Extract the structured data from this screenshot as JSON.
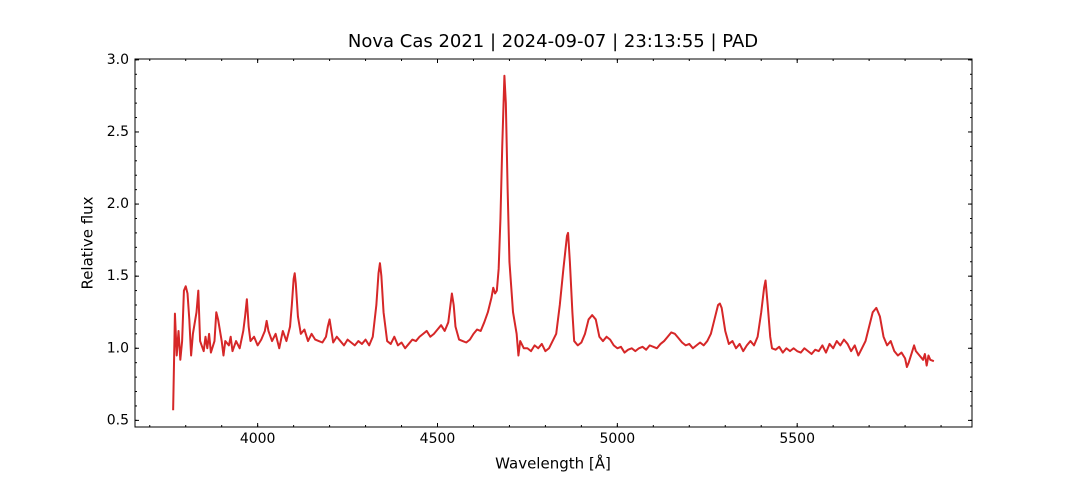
{
  "chart_data": {
    "type": "line",
    "title": "Nova Cas 2021 | 2024-09-07 | 23:13:55 | PAD",
    "xlabel": "Wavelength [Å]",
    "ylabel": "Relative flux",
    "color": "#d62728",
    "xlim": [
      3659,
      5986
    ],
    "ylim": [
      0.454,
      3.006
    ],
    "xticks": [
      4000,
      4500,
      5000,
      5500
    ],
    "yticks": [
      0.5,
      {
        "value": 1,
        "label": "1.0"
      },
      1.5,
      {
        "value": 2,
        "label": "2.0"
      },
      2.5,
      {
        "value": 3,
        "label": "3.0"
      }
    ],
    "x": [
      3765,
      3770,
      3775,
      3780,
      3785,
      3790,
      3795,
      3800,
      3805,
      3810,
      3815,
      3820,
      3830,
      3835,
      3840,
      3850,
      3855,
      3860,
      3865,
      3870,
      3880,
      3885,
      3890,
      3900,
      3905,
      3910,
      3920,
      3925,
      3930,
      3940,
      3950,
      3960,
      3965,
      3970,
      3975,
      3980,
      3990,
      4000,
      4010,
      4020,
      4025,
      4030,
      4040,
      4050,
      4060,
      4070,
      4080,
      4090,
      4095,
      4100,
      4103,
      4106,
      4112,
      4120,
      4130,
      4140,
      4150,
      4160,
      4170,
      4180,
      4190,
      4195,
      4200,
      4205,
      4210,
      4220,
      4230,
      4240,
      4250,
      4260,
      4270,
      4280,
      4290,
      4300,
      4310,
      4320,
      4330,
      4336,
      4340,
      4344,
      4350,
      4360,
      4370,
      4380,
      4390,
      4400,
      4410,
      4420,
      4430,
      4440,
      4450,
      4460,
      4470,
      4480,
      4490,
      4500,
      4510,
      4520,
      4530,
      4535,
      4540,
      4545,
      4550,
      4560,
      4570,
      4580,
      4590,
      4600,
      4610,
      4620,
      4630,
      4640,
      4650,
      4655,
      4660,
      4665,
      4670,
      4675,
      4680,
      4686,
      4690,
      4695,
      4700,
      4710,
      4720,
      4725,
      4730,
      4740,
      4750,
      4760,
      4770,
      4780,
      4790,
      4800,
      4810,
      4820,
      4830,
      4840,
      4850,
      4860,
      4863,
      4868,
      4875,
      4880,
      4890,
      4900,
      4910,
      4920,
      4930,
      4940,
      4950,
      4960,
      4970,
      4980,
      4990,
      5000,
      5010,
      5020,
      5030,
      5040,
      5050,
      5060,
      5070,
      5080,
      5090,
      5100,
      5110,
      5120,
      5130,
      5140,
      5150,
      5160,
      5170,
      5180,
      5190,
      5200,
      5210,
      5220,
      5230,
      5240,
      5250,
      5260,
      5270,
      5280,
      5285,
      5290,
      5300,
      5310,
      5320,
      5330,
      5340,
      5350,
      5360,
      5370,
      5380,
      5390,
      5400,
      5408,
      5412,
      5418,
      5425,
      5430,
      5440,
      5450,
      5460,
      5470,
      5480,
      5490,
      5500,
      5510,
      5520,
      5530,
      5540,
      5550,
      5560,
      5570,
      5580,
      5590,
      5600,
      5610,
      5620,
      5630,
      5640,
      5650,
      5660,
      5670,
      5680,
      5690,
      5700,
      5710,
      5720,
      5730,
      5740,
      5750,
      5760,
      5770,
      5780,
      5790,
      5800,
      5805,
      5810,
      5820,
      5825,
      5830,
      5840,
      5850,
      5855,
      5860,
      5865,
      5870,
      5880
    ],
    "values": [
      0.57,
      1.24,
      0.95,
      1.12,
      0.92,
      1.05,
      1.4,
      1.43,
      1.38,
      1.2,
      0.95,
      1.1,
      1.25,
      1.4,
      1.05,
      0.98,
      1.08,
      1.0,
      1.1,
      0.97,
      1.05,
      1.25,
      1.2,
      1.05,
      0.95,
      1.05,
      1.02,
      1.08,
      0.98,
      1.05,
      1.0,
      1.12,
      1.22,
      1.34,
      1.15,
      1.05,
      1.08,
      1.02,
      1.06,
      1.12,
      1.19,
      1.12,
      1.05,
      1.1,
      1.0,
      1.12,
      1.05,
      1.15,
      1.3,
      1.48,
      1.52,
      1.45,
      1.22,
      1.1,
      1.13,
      1.05,
      1.1,
      1.06,
      1.05,
      1.04,
      1.08,
      1.15,
      1.2,
      1.12,
      1.04,
      1.08,
      1.05,
      1.02,
      1.06,
      1.04,
      1.02,
      1.05,
      1.03,
      1.06,
      1.02,
      1.08,
      1.3,
      1.52,
      1.59,
      1.5,
      1.25,
      1.05,
      1.03,
      1.08,
      1.02,
      1.04,
      1.0,
      1.03,
      1.06,
      1.05,
      1.08,
      1.1,
      1.12,
      1.08,
      1.1,
      1.13,
      1.16,
      1.12,
      1.18,
      1.28,
      1.38,
      1.3,
      1.15,
      1.06,
      1.05,
      1.04,
      1.06,
      1.1,
      1.13,
      1.12,
      1.18,
      1.25,
      1.35,
      1.42,
      1.38,
      1.4,
      1.55,
      1.9,
      2.4,
      2.89,
      2.7,
      2.1,
      1.6,
      1.25,
      1.1,
      0.95,
      1.05,
      1.0,
      1.0,
      0.98,
      1.02,
      1.0,
      1.03,
      0.98,
      1.0,
      1.05,
      1.1,
      1.3,
      1.55,
      1.78,
      1.8,
      1.6,
      1.25,
      1.05,
      1.02,
      1.04,
      1.1,
      1.2,
      1.23,
      1.2,
      1.08,
      1.05,
      1.08,
      1.06,
      1.02,
      1.0,
      1.01,
      0.97,
      0.99,
      1.0,
      0.98,
      1.0,
      1.01,
      0.99,
      1.02,
      1.01,
      1.0,
      1.03,
      1.05,
      1.08,
      1.11,
      1.1,
      1.07,
      1.04,
      1.02,
      1.03,
      1.0,
      1.02,
      1.04,
      1.02,
      1.05,
      1.1,
      1.2,
      1.3,
      1.31,
      1.28,
      1.12,
      1.03,
      1.05,
      1.0,
      1.03,
      0.98,
      1.02,
      1.05,
      1.02,
      1.08,
      1.25,
      1.42,
      1.47,
      1.3,
      1.08,
      1.0,
      0.99,
      1.01,
      0.97,
      1.0,
      0.98,
      1.0,
      0.98,
      0.97,
      1.0,
      0.98,
      0.96,
      0.99,
      0.98,
      1.02,
      0.97,
      1.03,
      1.0,
      1.05,
      1.02,
      1.06,
      1.03,
      0.98,
      1.02,
      0.95,
      1.0,
      1.05,
      1.15,
      1.25,
      1.28,
      1.22,
      1.08,
      1.02,
      1.05,
      0.98,
      0.95,
      0.97,
      0.93,
      0.87,
      0.9,
      0.98,
      1.02,
      0.98,
      0.95,
      0.92,
      0.96,
      0.88,
      0.95,
      0.92,
      0.91
    ]
  }
}
